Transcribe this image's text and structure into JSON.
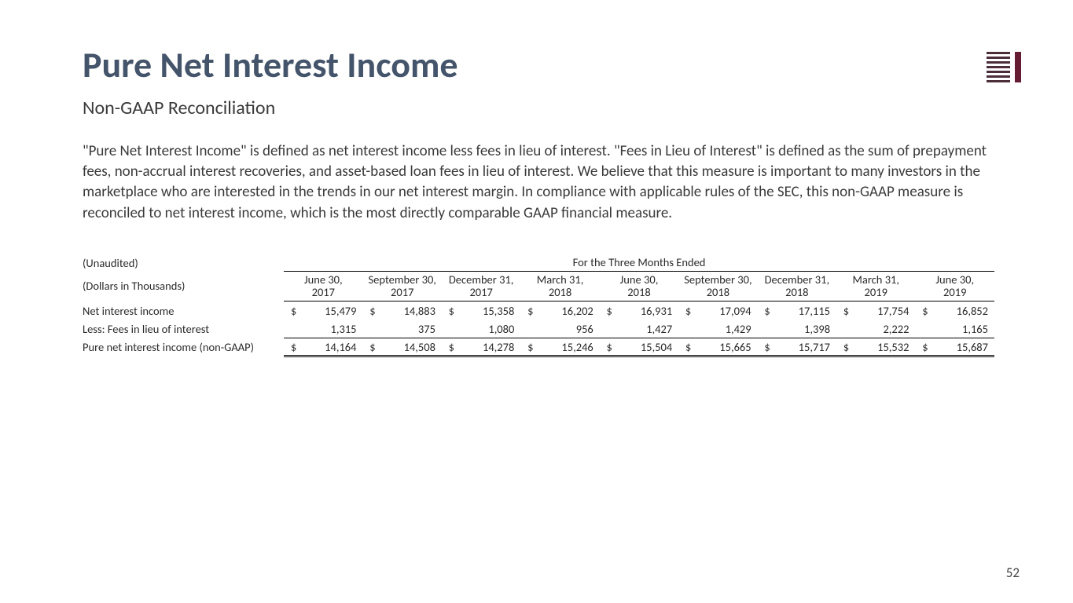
{
  "title": "Pure Net Interest Income",
  "subtitle": "Non-GAAP Reconciliation",
  "body": "\"Pure Net Interest Income\" is defined as net interest income less fees in lieu of interest. \"Fees in Lieu of Interest\" is defined as the sum of prepayment fees, non-accrual interest recoveries, and asset-based loan fees in lieu of interest. We believe that this measure is important to many investors in the marketplace who are interested in the trends in our net interest margin. In compliance with applicable rules of the SEC, this non-GAAP measure is reconciled to net interest income, which is the most directly comparable GAAP financial measure.",
  "table": {
    "unaudited": "(Unaudited)",
    "period_header": "For the Three Months Ended",
    "units": "(Dollars in Thousands)",
    "dates": [
      "June 30,<br>2017",
      "September 30,<br>2017",
      "December 31,<br>2017",
      "March 31,<br>2018",
      "June 30,<br>2018",
      "September 30,<br>2018",
      "December 31,<br>2018",
      "March 31,<br>2019",
      "June 30,<br>2019"
    ],
    "rows": [
      {
        "label": "Net interest income",
        "dollar": true,
        "vals": [
          "15,479",
          "14,883",
          "15,358",
          "16,202",
          "16,931",
          "17,094",
          "17,115",
          "17,754",
          "16,852"
        ]
      },
      {
        "label": "Less: Fees in lieu of interest",
        "dollar": false,
        "vals": [
          "1,315",
          "375",
          "1,080",
          "956",
          "1,427",
          "1,429",
          "1,398",
          "2,222",
          "1,165"
        ]
      },
      {
        "label": "Pure net interest income (non-GAAP)",
        "dollar": true,
        "vals": [
          "14,164",
          "14,508",
          "14,278",
          "15,246",
          "15,504",
          "15,665",
          "15,717",
          "15,532",
          "15,687"
        ]
      }
    ]
  },
  "page_number": "52",
  "styling": {
    "title_color": "#44546a",
    "text_color": "#3a3a3a",
    "logo_bars_color": "#4b2e3a",
    "logo_accent_color": "#651c32",
    "background": "#ffffff",
    "title_fontsize": 46,
    "subtitle_fontsize": 24,
    "body_fontsize": 19,
    "table_fontsize": 14.5
  }
}
